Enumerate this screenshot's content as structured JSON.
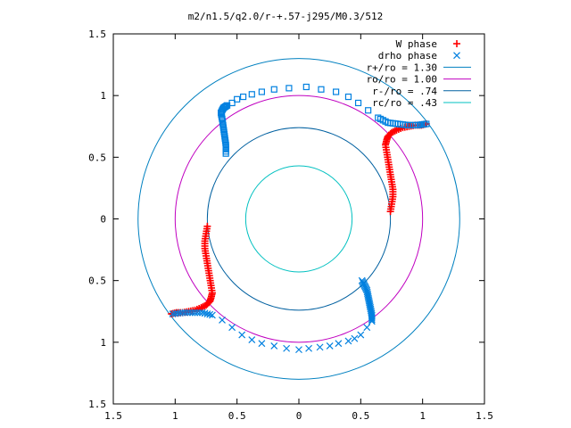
{
  "chart_data": {
    "type": "scatter",
    "title": "m2/n1.5/q2.0/r-+.57-j295/M0.3/512",
    "xlabel": "",
    "ylabel": "",
    "xlim": [
      -1.5,
      1.5
    ],
    "ylim": [
      -1.5,
      1.5
    ],
    "x_tick_values": [
      -1.5,
      -1,
      -0.5,
      0,
      0.5,
      1,
      1.5
    ],
    "x_tick_labels": [
      "1.5",
      "1",
      "0.5",
      "0",
      "0.5",
      "1",
      "1.5"
    ],
    "y_tick_values": [
      1.5,
      1,
      0.5,
      0,
      -0.5,
      -1,
      -1.5
    ],
    "y_tick_labels": [
      "1.5",
      "1",
      "0.5",
      "0",
      "0.5",
      "1",
      "1.5"
    ],
    "grid": false,
    "legend_position": "top-right",
    "legend": [
      {
        "label": "W phase",
        "color": "#ff0000",
        "marker": "plus"
      },
      {
        "label": "drho phase",
        "color": "#0080e0",
        "marker": "cross"
      },
      {
        "label": "r+/ro = 1.30",
        "color": "#0080c0",
        "marker": "line"
      },
      {
        "label": "ro/ro = 1.00",
        "color": "#c000c0",
        "marker": "line"
      },
      {
        "label": "r-/ro = .74",
        "color": "#0060a0",
        "marker": "line"
      },
      {
        "label": "rc/ro = .43",
        "color": "#00c0c0",
        "marker": "line"
      }
    ],
    "circles": [
      {
        "name": "r+/ro",
        "r": 1.3,
        "color": "#0080c0"
      },
      {
        "name": "ro/ro",
        "r": 1.0,
        "color": "#c000c0"
      },
      {
        "name": "r-/ro",
        "r": 0.74,
        "color": "#0060a0"
      },
      {
        "name": "rc/ro",
        "r": 0.43,
        "color": "#00c0c0"
      }
    ],
    "series": [
      {
        "name": "W phase",
        "color": "#ff0000",
        "marker": "plus",
        "arms": [
          [
            [
              0.74,
              0.06
            ],
            [
              0.75,
              0.12
            ],
            [
              0.76,
              0.18
            ],
            [
              0.76,
              0.24
            ],
            [
              0.75,
              0.3
            ],
            [
              0.74,
              0.36
            ],
            [
              0.73,
              0.42
            ],
            [
              0.72,
              0.48
            ],
            [
              0.71,
              0.54
            ],
            [
              0.7,
              0.6
            ],
            [
              0.71,
              0.64
            ],
            [
              0.72,
              0.67
            ],
            [
              0.75,
              0.7
            ],
            [
              0.79,
              0.72
            ],
            [
              0.84,
              0.74
            ],
            [
              0.89,
              0.75
            ],
            [
              0.94,
              0.76
            ],
            [
              0.99,
              0.76
            ],
            [
              1.03,
              0.77
            ]
          ],
          [
            [
              -0.74,
              -0.06
            ],
            [
              -0.75,
              -0.12
            ],
            [
              -0.76,
              -0.18
            ],
            [
              -0.76,
              -0.24
            ],
            [
              -0.75,
              -0.3
            ],
            [
              -0.74,
              -0.36
            ],
            [
              -0.73,
              -0.42
            ],
            [
              -0.72,
              -0.48
            ],
            [
              -0.71,
              -0.54
            ],
            [
              -0.7,
              -0.6
            ],
            [
              -0.71,
              -0.64
            ],
            [
              -0.72,
              -0.67
            ],
            [
              -0.75,
              -0.7
            ],
            [
              -0.79,
              -0.72
            ],
            [
              -0.84,
              -0.74
            ],
            [
              -0.89,
              -0.75
            ],
            [
              -0.94,
              -0.76
            ],
            [
              -0.99,
              -0.76
            ],
            [
              -1.03,
              -0.77
            ]
          ]
        ]
      },
      {
        "name": "drho phase",
        "color": "#0080e0",
        "marker": "cross",
        "arms": [
          [
            [
              0.59,
              -0.83
            ],
            [
              0.59,
              -0.78
            ],
            [
              0.58,
              -0.73
            ],
            [
              0.57,
              -0.68
            ],
            [
              0.56,
              -0.63
            ],
            [
              0.55,
              -0.58
            ],
            [
              0.53,
              -0.54
            ],
            [
              0.51,
              -0.5
            ],
            [
              0.55,
              -0.88
            ],
            [
              0.5,
              -0.94
            ],
            [
              0.45,
              -0.97
            ],
            [
              0.4,
              -0.99
            ],
            [
              0.32,
              -1.01
            ],
            [
              0.25,
              -1.03
            ],
            [
              0.17,
              -1.04
            ],
            [
              0.08,
              -1.05
            ],
            [
              0.0,
              -1.06
            ],
            [
              -0.1,
              -1.05
            ],
            [
              -0.2,
              -1.03
            ],
            [
              -0.3,
              -1.01
            ],
            [
              -0.38,
              -0.98
            ],
            [
              -0.46,
              -0.94
            ],
            [
              -0.54,
              -0.88
            ],
            [
              -0.62,
              -0.82
            ],
            [
              -0.7,
              -0.78
            ],
            [
              -0.78,
              -0.76
            ],
            [
              -0.86,
              -0.76
            ],
            [
              -0.94,
              -0.76
            ],
            [
              -1.02,
              -0.77
            ]
          ],
          [
            [
              -0.59,
              0.53
            ],
            [
              -0.59,
              0.6
            ],
            [
              -0.6,
              0.67
            ],
            [
              -0.61,
              0.74
            ],
            [
              -0.62,
              0.81
            ],
            [
              -0.63,
              0.86
            ],
            [
              -0.61,
              0.9
            ],
            [
              -0.58,
              0.92
            ],
            [
              -0.54,
              0.94
            ],
            [
              -0.5,
              0.97
            ],
            [
              -0.45,
              0.99
            ],
            [
              -0.38,
              1.01
            ],
            [
              -0.3,
              1.03
            ],
            [
              -0.2,
              1.05
            ],
            [
              -0.08,
              1.06
            ],
            [
              0.06,
              1.07
            ],
            [
              0.18,
              1.05
            ],
            [
              0.3,
              1.03
            ],
            [
              0.4,
              0.99
            ],
            [
              0.48,
              0.94
            ],
            [
              0.56,
              0.88
            ],
            [
              0.64,
              0.82
            ],
            [
              0.72,
              0.78
            ],
            [
              0.8,
              0.77
            ],
            [
              0.88,
              0.76
            ],
            [
              0.96,
              0.76
            ],
            [
              1.03,
              0.77
            ]
          ]
        ]
      }
    ]
  }
}
